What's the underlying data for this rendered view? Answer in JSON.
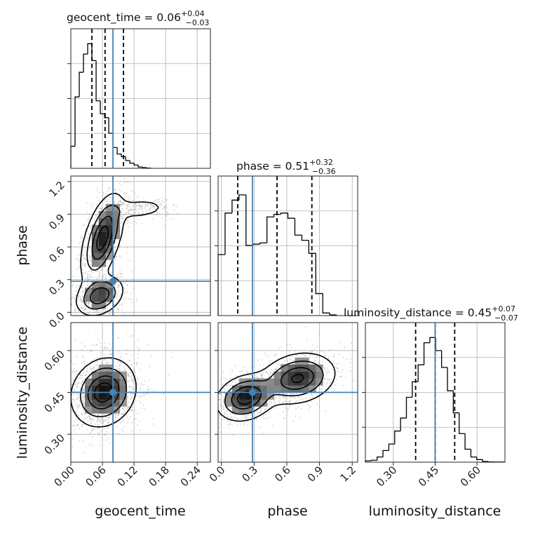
{
  "chart_data": {
    "type": "corner",
    "parameters": [
      "geocent_time",
      "phase",
      "luminosity_distance"
    ],
    "axis_labels": {
      "geocent_time": "geocent_time",
      "phase": "phase",
      "luminosity_distance": "luminosity_distance"
    },
    "ranges": {
      "geocent_time": [
        0.0,
        0.265
      ],
      "phase": [
        -0.03,
        1.25
      ],
      "luminosity_distance": [
        0.2,
        0.7
      ]
    },
    "ticks": {
      "geocent_time": [
        "0.00",
        "0.06",
        "0.12",
        "0.18",
        "0.24"
      ],
      "phase": [
        "0.0",
        "0.3",
        "0.6",
        "0.9",
        "1.2"
      ],
      "luminosity_distance": [
        "0.30",
        "0.45",
        "0.60"
      ]
    },
    "truths": {
      "geocent_time": 0.08,
      "phase": 0.285,
      "luminosity_distance": 0.45
    },
    "truth_color": "#4682b4",
    "diagonal": [
      {
        "param": "geocent_time",
        "title_prefix": "geocent_time = 0.06",
        "title_upper": "+0.04",
        "title_lower": "−0.03",
        "quantiles": [
          0.04,
          0.065,
          0.1
        ],
        "bin_edges_start": 0.0,
        "bin_width": 0.008,
        "counts": [
          0.17,
          0.55,
          0.74,
          0.88,
          0.96,
          0.83,
          0.52,
          0.42,
          0.39,
          0.27,
          0.16,
          0.11,
          0.09,
          0.06,
          0.04,
          0.025,
          0.01,
          0.005,
          0.002
        ]
      },
      {
        "param": "phase",
        "title_prefix": "phase = 0.51",
        "title_upper": "+0.32",
        "title_lower": "−0.36",
        "quantiles": [
          0.15,
          0.51,
          0.83
        ],
        "bin_edges_start": -0.03,
        "bin_width": 0.064,
        "counts": [
          0.47,
          0.79,
          0.89,
          0.93,
          0.54,
          0.55,
          0.56,
          0.76,
          0.78,
          0.79,
          0.75,
          0.62,
          0.58,
          0.48,
          0.17,
          0.02,
          0.005
        ]
      },
      {
        "param": "luminosity_distance",
        "title_prefix": "luminosity_distance = 0.45",
        "title_upper": "+0.07",
        "title_lower": "−0.07",
        "quantiles": [
          0.38,
          0.45,
          0.52
        ],
        "bin_edges_start": 0.2,
        "bin_width": 0.021,
        "counts": [
          0.01,
          0.015,
          0.04,
          0.09,
          0.14,
          0.24,
          0.34,
          0.5,
          0.62,
          0.75,
          0.92,
          0.96,
          0.86,
          0.73,
          0.55,
          0.38,
          0.22,
          0.1,
          0.04,
          0.02,
          0.005,
          0.002,
          0.001,
          0.001
        ]
      }
    ],
    "pairs": [
      {
        "x": "geocent_time",
        "y": "phase",
        "modes": [
          {
            "x": 0.06,
            "y": 0.68,
            "sx": 0.02,
            "sy": 0.2,
            "rho": 0.55,
            "w": 1.0
          },
          {
            "x": 0.055,
            "y": 0.15,
            "sx": 0.022,
            "sy": 0.09,
            "rho": 0.3,
            "w": 0.85
          },
          {
            "x": 0.13,
            "y": 0.95,
            "sx": 0.03,
            "sy": 0.05,
            "rho": 0.2,
            "w": 0.25
          }
        ]
      },
      {
        "x": "geocent_time",
        "y": "luminosity_distance",
        "modes": [
          {
            "x": 0.062,
            "y": 0.45,
            "sx": 0.03,
            "sy": 0.06,
            "rho": 0.15,
            "w": 1.0
          }
        ]
      },
      {
        "x": "phase",
        "y": "luminosity_distance",
        "modes": [
          {
            "x": 0.22,
            "y": 0.43,
            "sx": 0.13,
            "sy": 0.04,
            "rho": 0.2,
            "w": 1.0
          },
          {
            "x": 0.7,
            "y": 0.5,
            "sx": 0.17,
            "sy": 0.045,
            "rho": 0.2,
            "w": 0.9
          }
        ]
      }
    ]
  }
}
